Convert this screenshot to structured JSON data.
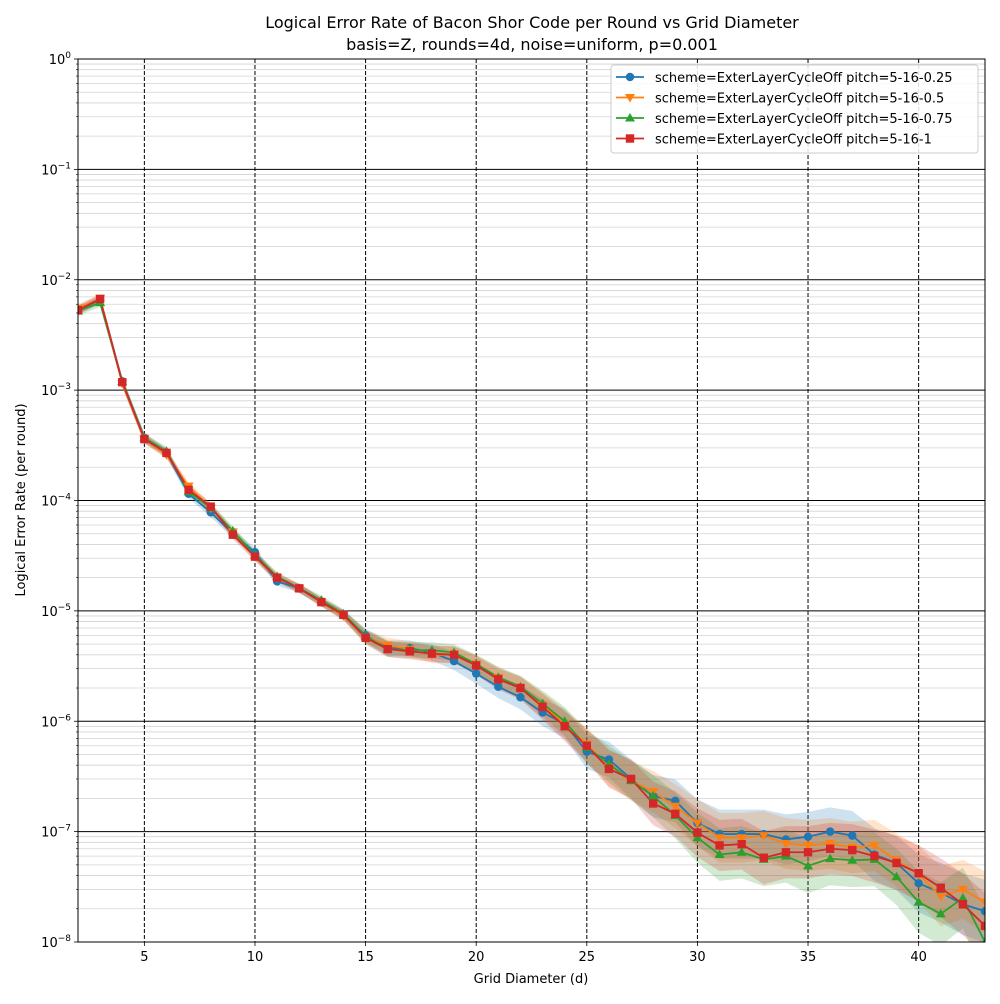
{
  "chart_data": {
    "type": "line",
    "title": "Logical Error Rate of Bacon Shor Code per Round vs Grid Diameter",
    "subtitle": "basis=Z, rounds=4d, noise=uniform, p=0.001",
    "xlabel": "Grid Diameter (d)",
    "ylabel": "Logical Error Rate (per round)",
    "xlim": [
      2,
      43
    ],
    "ylim": [
      1e-08,
      1
    ],
    "yscale": "log",
    "grid": true,
    "legend_position": "top-right",
    "x_ticks": [
      "5",
      "10",
      "15",
      "20",
      "25",
      "30",
      "35",
      "40"
    ],
    "y_ticks": [
      {
        "base": "10",
        "exp": "0"
      },
      {
        "base": "10",
        "exp": "−1"
      },
      {
        "base": "10",
        "exp": "−2"
      },
      {
        "base": "10",
        "exp": "−3"
      },
      {
        "base": "10",
        "exp": "−4"
      },
      {
        "base": "10",
        "exp": "−5"
      },
      {
        "base": "10",
        "exp": "−6"
      },
      {
        "base": "10",
        "exp": "−7"
      },
      {
        "base": "10",
        "exp": "−8"
      }
    ],
    "x": [
      2,
      3,
      4,
      5,
      6,
      7,
      8,
      9,
      10,
      11,
      12,
      13,
      14,
      15,
      16,
      17,
      18,
      19,
      20,
      21,
      22,
      23,
      24,
      25,
      26,
      27,
      28,
      29,
      30,
      31,
      32,
      33,
      34,
      35,
      36,
      37,
      38,
      39,
      40,
      41,
      42,
      43
    ],
    "series": [
      {
        "name": "scheme=ExterLayerCycleOff pitch=5-16-0.25",
        "color": "#1f77b4",
        "marker": "circle",
        "values": [
          0.0053,
          0.0066,
          0.0012,
          0.00037,
          0.00027,
          0.000115,
          7.8e-05,
          5e-05,
          3.4e-05,
          1.85e-05,
          1.6e-05,
          1.2e-05,
          9.2e-06,
          6e-06,
          4.6e-06,
          4.6e-06,
          4.2e-06,
          3.5e-06,
          2.7e-06,
          2.05e-06,
          1.65e-06,
          1.2e-06,
          9.5e-07,
          5.3e-07,
          4.5e-07,
          3e-07,
          2.1e-07,
          1.9e-07,
          1.2e-07,
          9.5e-08,
          9.5e-08,
          9.5e-08,
          8.5e-08,
          9e-08,
          1e-07,
          9.2e-08,
          6.2e-08,
          5.2e-08,
          3.4e-08,
          2.8e-08,
          2.2e-08,
          1.9e-08
        ]
      },
      {
        "name": "scheme=ExterLayerCycleOff pitch=5-16-0.5",
        "color": "#ff7f0e",
        "marker": "triangle-down",
        "values": [
          0.0055,
          0.0068,
          0.00115,
          0.00036,
          0.00026,
          0.000135,
          8.5e-05,
          5.2e-05,
          3.1e-05,
          2e-05,
          1.6e-05,
          1.2e-05,
          9e-06,
          5.8e-06,
          4.9e-06,
          4.5e-06,
          4e-06,
          4e-06,
          3.3e-06,
          2.5e-06,
          2e-06,
          1.4e-06,
          9.5e-07,
          6.2e-07,
          3.8e-07,
          2.9e-07,
          2.3e-07,
          1.7e-07,
          1.2e-07,
          8.8e-08,
          8.8e-08,
          9.2e-08,
          7.8e-08,
          7.5e-08,
          7.8e-08,
          7.2e-08,
          7.5e-08,
          5.5e-08,
          4.1e-08,
          2.6e-08,
          3e-08,
          2.3e-08
        ]
      },
      {
        "name": "scheme=ExterLayerCycleOff pitch=5-16-0.75",
        "color": "#2ca02c",
        "marker": "triangle-up",
        "values": [
          0.0052,
          0.0062,
          0.0012,
          0.00037,
          0.00028,
          0.00012,
          8.6e-05,
          5.3e-05,
          3.2e-05,
          2.05e-05,
          1.6e-05,
          1.25e-05,
          9.4e-06,
          5.9e-06,
          4.5e-06,
          4.4e-06,
          4.4e-06,
          4.2e-06,
          3.3e-06,
          2.5e-06,
          2.05e-06,
          1.45e-06,
          1e-06,
          5.8e-07,
          4.1e-07,
          2.9e-07,
          2.1e-07,
          1.4e-07,
          8.8e-08,
          6.2e-08,
          6.5e-08,
          5.6e-08,
          6e-08,
          4.9e-08,
          5.7e-08,
          5.5e-08,
          5.6e-08,
          3.9e-08,
          2.3e-08,
          1.8e-08,
          2.5e-08,
          1e-08
        ]
      },
      {
        "name": "scheme=ExterLayerCycleOff pitch=5-16-1",
        "color": "#d62728",
        "marker": "square",
        "values": [
          0.0053,
          0.0067,
          0.00118,
          0.00036,
          0.00027,
          0.000125,
          8.8e-05,
          4.9e-05,
          3.1e-05,
          2e-05,
          1.6e-05,
          1.2e-05,
          9.2e-06,
          5.7e-06,
          4.5e-06,
          4.3e-06,
          4.1e-06,
          4e-06,
          3.2e-06,
          2.4e-06,
          2e-06,
          1.35e-06,
          9e-07,
          6e-07,
          3.7e-07,
          3e-07,
          1.8e-07,
          1.45e-07,
          9.8e-08,
          7.5e-08,
          7.7e-08,
          5.8e-08,
          6.5e-08,
          6.5e-08,
          7e-08,
          6.8e-08,
          6e-08,
          5.2e-08,
          4.2e-08,
          3.1e-08,
          2.2e-08,
          1.4e-08
        ]
      }
    ]
  }
}
